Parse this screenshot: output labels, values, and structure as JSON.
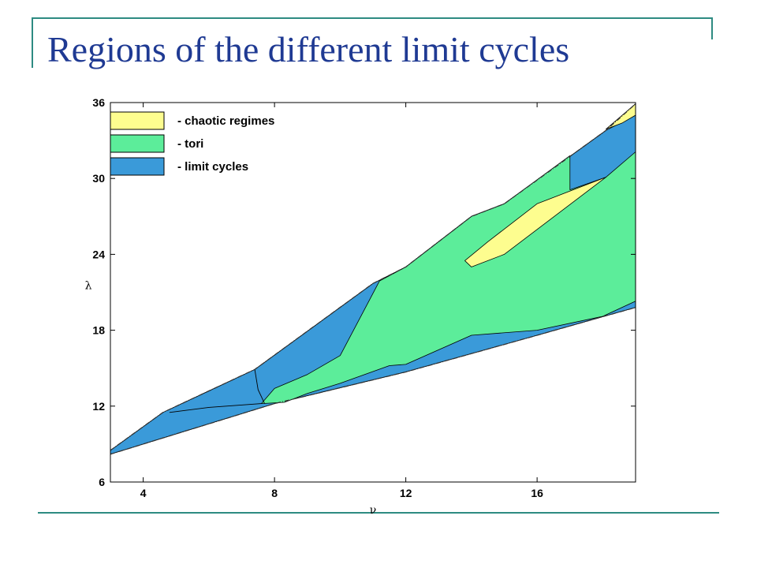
{
  "slide": {
    "title": "Regions of the different limit cycles"
  },
  "chart_data": {
    "type": "area",
    "xlabel": "ν",
    "ylabel": "λ",
    "xlim": [
      3,
      19
    ],
    "ylim": [
      6,
      36
    ],
    "x_ticks": [
      4,
      8,
      12,
      16
    ],
    "y_ticks": [
      6,
      12,
      18,
      24,
      30,
      36
    ],
    "legend_position": "top-left",
    "grid": false,
    "colors": {
      "chaotic": "#fdfd8f",
      "tori": "#5ced9a",
      "limit_cycles": "#3a9ad9",
      "outline": "#000000",
      "boundary": "#333333"
    },
    "legend": [
      {
        "label": "- chaotic regimes",
        "color": "#fdfd8f"
      },
      {
        "label": "- tori",
        "color": "#5ced9a"
      },
      {
        "label": "- limit cycles",
        "color": "#3a9ad9"
      }
    ],
    "regions": [
      {
        "name": "limit cycles",
        "color": "#3a9ad9",
        "points": [
          [
            3,
            8.5
          ],
          [
            4.6,
            11.5
          ],
          [
            7.4,
            14.9
          ],
          [
            11,
            21.7
          ],
          [
            12,
            23
          ],
          [
            14,
            27
          ],
          [
            15,
            28
          ],
          [
            18.1,
            33.8
          ],
          [
            19,
            35
          ],
          [
            19,
            19.8
          ],
          [
            16,
            17.6
          ],
          [
            12,
            14.7
          ],
          [
            8,
            12.2
          ],
          [
            3,
            8.2
          ]
        ]
      },
      {
        "name": "tori",
        "color": "#5ced9a",
        "points": [
          [
            7.6,
            12.2
          ],
          [
            8,
            13.4
          ],
          [
            9,
            14.5
          ],
          [
            10,
            16
          ],
          [
            11.2,
            21.9
          ],
          [
            12,
            23
          ],
          [
            14,
            27
          ],
          [
            15,
            28
          ],
          [
            17,
            31.8
          ],
          [
            17,
            29.1
          ],
          [
            18.1,
            30.1
          ],
          [
            19,
            32.1
          ],
          [
            19,
            20.3
          ],
          [
            18,
            19.1
          ],
          [
            16,
            18
          ],
          [
            14,
            17.6
          ],
          [
            12,
            15.3
          ],
          [
            11.5,
            15.2
          ],
          [
            10,
            13.8
          ],
          [
            9,
            13
          ],
          [
            8.3,
            12.3
          ]
        ]
      },
      {
        "name": "chaotic regimes",
        "color": "#fdfd8f",
        "points": [
          [
            13.8,
            23.5
          ],
          [
            14.5,
            25
          ],
          [
            16,
            28
          ],
          [
            18.1,
            30.1
          ],
          [
            15,
            24
          ],
          [
            14,
            23
          ]
        ]
      },
      {
        "name": "chaotic regimes",
        "color": "#fdfd8f",
        "points": [
          [
            18.1,
            33.9
          ],
          [
            19,
            35.9
          ],
          [
            19,
            35
          ],
          [
            18.6,
            34.4
          ]
        ]
      }
    ],
    "boundaries": [
      {
        "name": "upper",
        "points": [
          [
            3,
            8.5
          ],
          [
            4.6,
            11.5
          ],
          [
            7.4,
            14.9
          ],
          [
            11,
            21.7
          ],
          [
            12,
            23
          ],
          [
            14,
            27
          ],
          [
            15,
            28
          ],
          [
            18.1,
            33.8
          ],
          [
            19,
            35.9
          ]
        ]
      },
      {
        "name": "lower",
        "points": [
          [
            3,
            8.2
          ],
          [
            8,
            12.2
          ],
          [
            12,
            14.7
          ],
          [
            16,
            17.6
          ],
          [
            19,
            19.8
          ]
        ]
      }
    ],
    "inner_lines": [
      {
        "points": [
          [
            4.8,
            11.5
          ],
          [
            6,
            11.9
          ],
          [
            7.6,
            12.2
          ]
        ]
      },
      {
        "points": [
          [
            7.4,
            14.9
          ],
          [
            7.5,
            13.3
          ],
          [
            7.7,
            12.2
          ]
        ]
      }
    ]
  }
}
